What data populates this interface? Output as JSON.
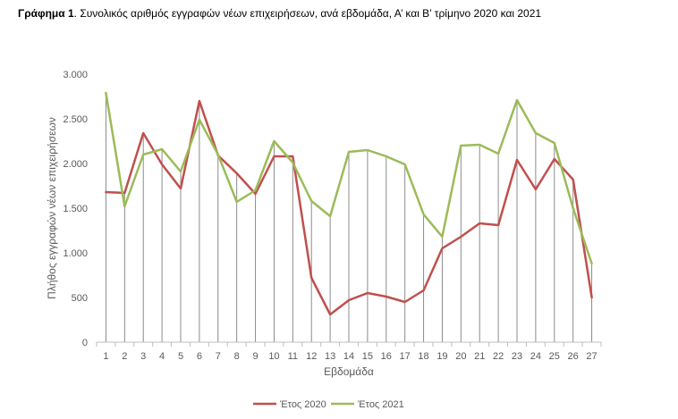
{
  "caption": {
    "label": "Γράφημα 1",
    "text": ". Συνολικός αριθμός εγγραφών νέων επιχειρήσεων, ανά εβδομάδα, Α’ και Β’ τρίμηνο 2020 και 2021"
  },
  "chart_data": {
    "type": "line",
    "title": "Γράφημα 1. Συνολικός αριθμός εγγραφών νέων επιχειρήσεων, ανά εβδομάδα, Α’ και Β’ τρίμηνο 2020 και 2021",
    "xlabel": "Εβδομάδα",
    "ylabel": "Πλήθος εγγραφών νέων επιχειρήσεων",
    "x": [
      1,
      2,
      3,
      4,
      5,
      6,
      7,
      8,
      9,
      10,
      11,
      12,
      13,
      14,
      15,
      16,
      17,
      18,
      19,
      20,
      21,
      22,
      23,
      24,
      25,
      26,
      27
    ],
    "ylim": [
      0,
      3000
    ],
    "yticks": [
      0,
      500,
      1000,
      1500,
      2000,
      2500,
      3000
    ],
    "ytick_labels": [
      "0",
      "500",
      "1.000",
      "1.500",
      "2.000",
      "2.500",
      "3.000"
    ],
    "vertical_drop_lines": true,
    "legend_position": "bottom",
    "series": [
      {
        "name": "Έτος 2020",
        "color": "#c0504d",
        "values": [
          1680,
          1670,
          2340,
          1990,
          1720,
          2700,
          2090,
          1890,
          1660,
          2080,
          2080,
          720,
          310,
          470,
          550,
          510,
          450,
          580,
          1050,
          1180,
          1330,
          1310,
          2040,
          1710,
          2050,
          1820,
          500
        ]
      },
      {
        "name": "Έτος 2021",
        "color": "#9bbb59",
        "values": [
          2790,
          1520,
          2100,
          2160,
          1910,
          2490,
          2100,
          1570,
          1700,
          2250,
          2010,
          1580,
          1410,
          2130,
          2150,
          2080,
          1990,
          1430,
          1180,
          2200,
          2210,
          2110,
          2710,
          2340,
          2230,
          1500,
          880
        ]
      }
    ]
  }
}
